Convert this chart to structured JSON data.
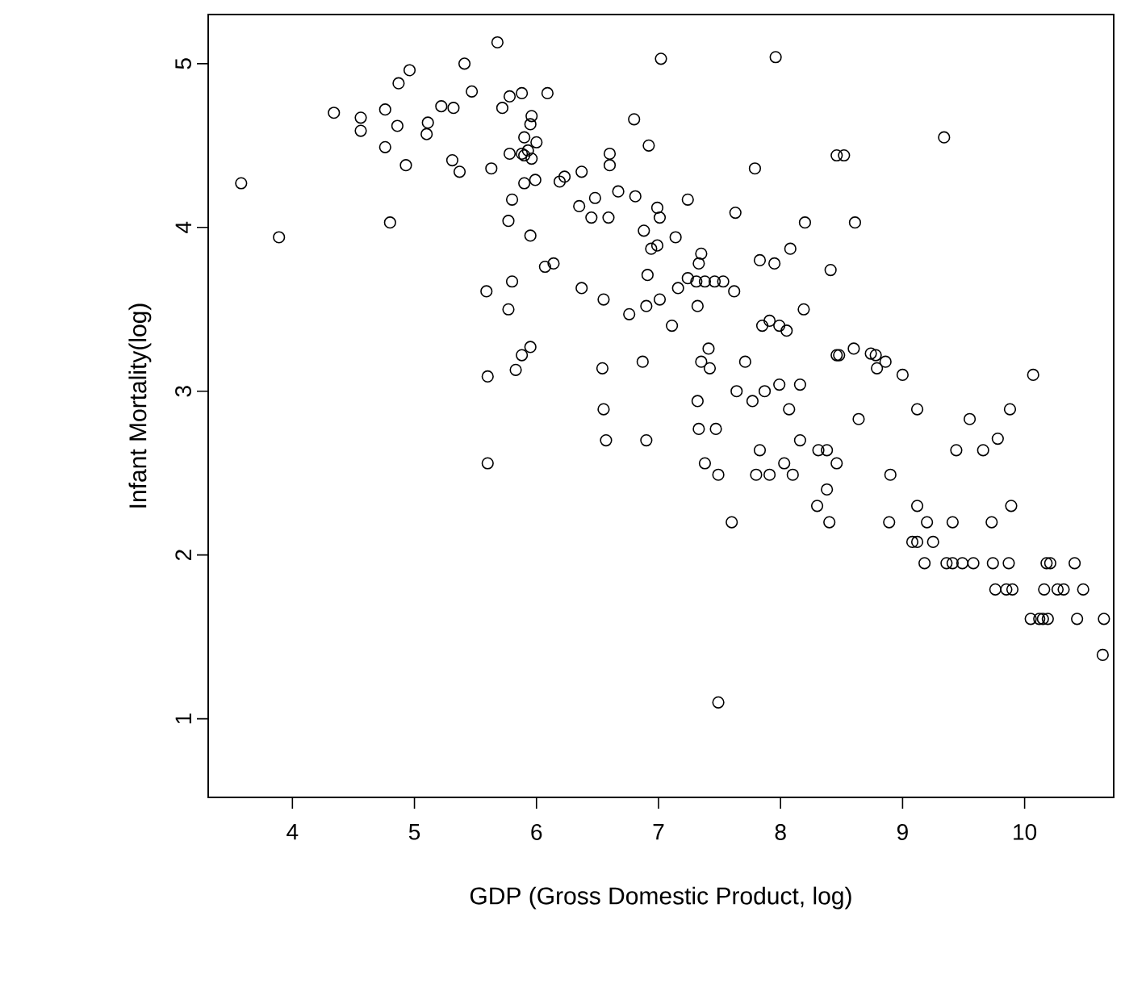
{
  "chart_data": {
    "type": "scatter",
    "xlabel": "GDP (Gross Domestic Product, log)",
    "ylabel": "Infant Mortality(log)",
    "xlim": [
      3.31,
      10.73
    ],
    "ylim": [
      0.52,
      5.3
    ],
    "xticks": [
      4,
      5,
      6,
      7,
      8,
      9,
      10
    ],
    "yticks": [
      1,
      2,
      3,
      4,
      5
    ],
    "marker": "circle",
    "series": [
      {
        "color": "#000000",
        "x": [
          3.58,
          3.89,
          4.34,
          4.56,
          4.56,
          4.76,
          4.76,
          4.87,
          4.96,
          4.86,
          4.93,
          4.8,
          5.11,
          5.1,
          5.22,
          5.32,
          5.41,
          5.47,
          5.31,
          5.37,
          5.68,
          5.63,
          5.72,
          5.78,
          5.88,
          5.78,
          5.88,
          5.9,
          5.8,
          5.77,
          5.95,
          5.59,
          5.8,
          5.77,
          5.95,
          5.88,
          5.83,
          5.6,
          6.09,
          5.96,
          5.95,
          6.0,
          5.9,
          5.9,
          5.96,
          5.93,
          5.99,
          6.07,
          6.14,
          6.19,
          6.23,
          6.37,
          6.6,
          6.6,
          6.8,
          7.02,
          6.92,
          6.67,
          6.81,
          6.35,
          6.48,
          6.45,
          6.59,
          6.88,
          6.99,
          7.01,
          7.14,
          7.24,
          6.94,
          6.99,
          6.91,
          6.37,
          6.55,
          6.76,
          6.9,
          7.01,
          7.11,
          7.16,
          7.24,
          7.33,
          7.35,
          7.32,
          7.31,
          7.38,
          7.46,
          7.53,
          7.62,
          7.63,
          7.79,
          7.83,
          7.95,
          8.08,
          8.2,
          7.96,
          8.41,
          8.46,
          7.85,
          7.91,
          7.99,
          8.05,
          8.19,
          8.46,
          6.54,
          6.87,
          7.41,
          7.35,
          7.42,
          7.71,
          6.55,
          7.32,
          7.64,
          7.77,
          7.87,
          7.99,
          8.16,
          8.07,
          6.57,
          6.9,
          7.33,
          7.47,
          7.38,
          7.49,
          7.83,
          7.8,
          7.91,
          8.03,
          8.1,
          8.16,
          8.31,
          8.38,
          8.46,
          8.38,
          8.3,
          8.4,
          7.6,
          7.49,
          5.6,
          8.52,
          9.34,
          8.61,
          8.48,
          8.6,
          8.74,
          8.78,
          8.86,
          8.79,
          9.0,
          10.07,
          8.64,
          9.12,
          9.55,
          9.88,
          9.78,
          9.66,
          9.44,
          8.9,
          9.12,
          8.89,
          9.2,
          9.41,
          9.73,
          9.89,
          9.08,
          9.12,
          9.25,
          9.18,
          9.36,
          9.41,
          9.49,
          9.58,
          9.74,
          9.87,
          10.18,
          10.21,
          10.41,
          9.76,
          9.85,
          9.9,
          10.16,
          10.27,
          10.32,
          10.48,
          10.05,
          10.12,
          10.15,
          10.19,
          10.43,
          10.65,
          10.64
        ],
        "values": [
          4.27,
          3.94,
          4.7,
          4.67,
          4.59,
          4.72,
          4.49,
          4.88,
          4.96,
          4.62,
          4.38,
          4.03,
          4.64,
          4.57,
          4.74,
          4.73,
          5.0,
          4.83,
          4.41,
          4.34,
          5.13,
          4.36,
          4.73,
          4.8,
          4.82,
          4.45,
          4.45,
          4.27,
          4.17,
          4.04,
          3.95,
          3.61,
          3.67,
          3.5,
          3.27,
          3.22,
          3.13,
          3.09,
          4.82,
          4.68,
          4.63,
          4.52,
          4.55,
          4.44,
          4.42,
          4.47,
          4.29,
          3.76,
          3.78,
          4.28,
          4.31,
          4.34,
          4.45,
          4.38,
          4.66,
          5.03,
          4.5,
          4.22,
          4.19,
          4.13,
          4.18,
          4.06,
          4.06,
          3.98,
          4.12,
          4.06,
          3.94,
          4.17,
          3.87,
          3.89,
          3.71,
          3.63,
          3.56,
          3.47,
          3.52,
          3.56,
          3.4,
          3.63,
          3.69,
          3.78,
          3.84,
          3.52,
          3.67,
          3.67,
          3.67,
          3.67,
          3.61,
          4.09,
          4.36,
          3.8,
          3.78,
          3.87,
          4.03,
          5.04,
          3.74,
          4.44,
          3.4,
          3.43,
          3.4,
          3.37,
          3.5,
          3.22,
          3.14,
          3.18,
          3.26,
          3.18,
          3.14,
          3.18,
          2.89,
          2.94,
          3.0,
          2.94,
          3.0,
          3.04,
          3.04,
          2.89,
          2.7,
          2.7,
          2.77,
          2.77,
          2.56,
          2.49,
          2.64,
          2.49,
          2.49,
          2.56,
          2.49,
          2.7,
          2.64,
          2.64,
          2.56,
          2.4,
          2.3,
          2.2,
          2.2,
          1.1,
          2.56,
          4.44,
          4.55,
          4.03,
          3.22,
          3.26,
          3.23,
          3.22,
          3.18,
          3.14,
          3.1,
          3.1,
          2.83,
          2.89,
          2.83,
          2.89,
          2.71,
          2.64,
          2.64,
          2.49,
          2.3,
          2.2,
          2.2,
          2.2,
          2.2,
          2.3,
          2.08,
          2.08,
          2.08,
          1.95,
          1.95,
          1.95,
          1.95,
          1.95,
          1.95,
          1.95,
          1.95,
          1.95,
          1.95,
          1.79,
          1.79,
          1.79,
          1.79,
          1.79,
          1.79,
          1.79,
          1.61,
          1.61,
          1.61,
          1.61,
          1.61,
          1.61,
          1.39
        ]
      }
    ]
  }
}
